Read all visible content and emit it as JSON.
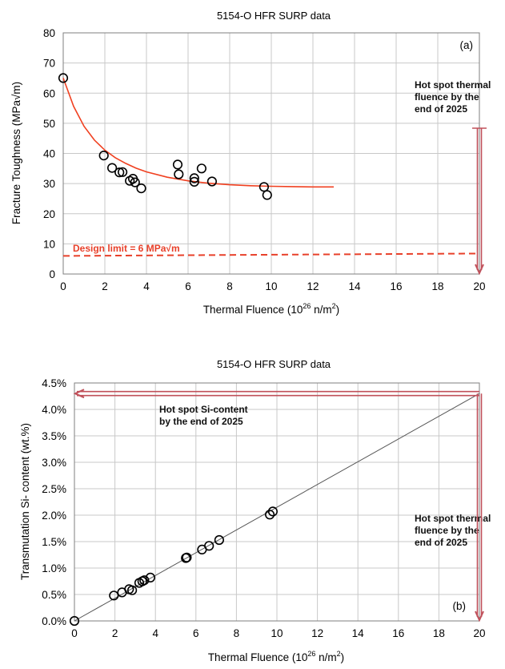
{
  "chart_data": [
    {
      "type": "scatter",
      "title": "5154-O HFR SURP data",
      "panel_label": "(a)",
      "xlabel_main": "Thermal Fluence (10",
      "xlabel_sup": "26",
      "xlabel_tail": " n/m",
      "xlabel_sup2": "2",
      "xlabel_end": ")",
      "ylabel": "Fracture Toughness (MPa√m)",
      "xlim": [
        0,
        20
      ],
      "ylim": [
        0,
        80
      ],
      "xticks": [
        "0",
        "2",
        "4",
        "6",
        "8",
        "10",
        "12",
        "14",
        "16",
        "18",
        "20"
      ],
      "yticks": [
        "0",
        "10",
        "20",
        "30",
        "40",
        "50",
        "60",
        "70",
        "80"
      ],
      "grid": true,
      "series": [
        {
          "marker": "open-circle",
          "x": [
            0,
            1.95,
            2.35,
            2.7,
            2.85,
            3.2,
            3.35,
            3.45,
            3.75,
            5.5,
            5.55,
            6.3,
            6.3,
            6.65,
            7.15,
            9.65,
            9.8
          ],
          "y": [
            65,
            39.3,
            35.2,
            33.7,
            33.8,
            30.9,
            31.6,
            30.4,
            28.4,
            36.3,
            33.1,
            31.8,
            30.6,
            35.0,
            30.7,
            28.9,
            26.2
          ]
        }
      ],
      "fit_curve": {
        "color": "#f04020",
        "x": [
          0,
          0.5,
          1,
          1.5,
          2,
          2.5,
          3,
          3.5,
          4,
          5,
          6,
          7,
          8,
          9,
          10,
          11,
          12,
          13
        ],
        "y": [
          65,
          55.6,
          49,
          44.4,
          41.1,
          38.6,
          36.7,
          35.1,
          33.9,
          32.1,
          30.9,
          30.1,
          29.6,
          29.3,
          29.1,
          29.0,
          28.9,
          28.9
        ]
      },
      "design_limit": {
        "label": "Design limit = 6 MPa√m",
        "y_start": 6.0,
        "y_end": 6.8,
        "color": "#e8402a"
      },
      "annotation": {
        "lines": [
          "Hot spot thermal",
          "fluence by the",
          "end of 2025"
        ],
        "x": 20,
        "arrow_color": "#c0505a"
      }
    },
    {
      "type": "scatter",
      "title": "5154-O HFR SURP data",
      "panel_label": "(b)",
      "xlabel_main": "Thermal Fluence (10",
      "xlabel_sup": "26",
      "xlabel_tail": " n/m",
      "xlabel_sup2": "2",
      "xlabel_end": ")",
      "ylabel": "Transmutation Si- content (wt.%)",
      "xlim": [
        0,
        20
      ],
      "ylim": [
        0,
        4.5
      ],
      "xticks": [
        "0",
        "2",
        "4",
        "6",
        "8",
        "10",
        "12",
        "14",
        "16",
        "18",
        "20"
      ],
      "yticks": [
        "0.0%",
        "0.5%",
        "1.0%",
        "1.5%",
        "2.0%",
        "2.5%",
        "3.0%",
        "3.5%",
        "4.0%",
        "4.5%"
      ],
      "grid": true,
      "series": [
        {
          "marker": "open-circle",
          "x": [
            0,
            1.95,
            2.35,
            2.7,
            2.85,
            3.2,
            3.35,
            3.45,
            3.75,
            5.5,
            5.55,
            6.3,
            6.65,
            7.15,
            9.65,
            9.8
          ],
          "y": [
            0,
            0.48,
            0.54,
            0.6,
            0.58,
            0.72,
            0.75,
            0.77,
            0.82,
            1.19,
            1.2,
            1.35,
            1.42,
            1.53,
            2.01,
            2.07
          ]
        }
      ],
      "fit_line": {
        "color": "#555555",
        "x": [
          0,
          20
        ],
        "y": [
          0,
          4.3
        ]
      },
      "annotation_si": {
        "lines": [
          "Hot spot Si-content",
          "by the end of 2025"
        ],
        "y": 4.3,
        "arrow_color": "#c0505a"
      },
      "annotation": {
        "lines": [
          "Hot spot thermal",
          "fluence by the",
          "end of 2025"
        ],
        "x": 20,
        "arrow_color": "#c0505a"
      }
    }
  ]
}
